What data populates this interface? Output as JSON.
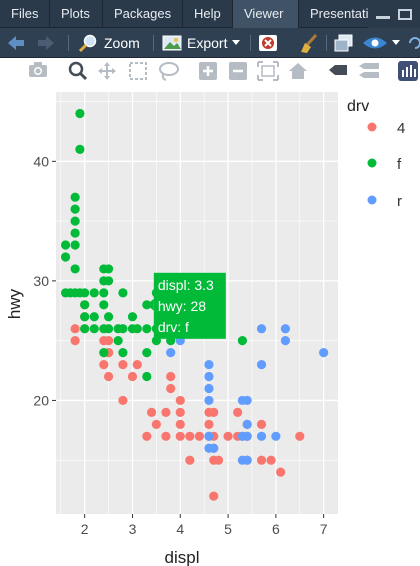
{
  "tabs": [
    {
      "label": "Files",
      "active": false
    },
    {
      "label": "Plots",
      "active": false
    },
    {
      "label": "Packages",
      "active": false
    },
    {
      "label": "Help",
      "active": false
    },
    {
      "label": "Viewer",
      "active": true
    },
    {
      "label": "Presentatio",
      "active": false
    }
  ],
  "toolbar": {
    "zoom_label": "Zoom",
    "export_label": "Export"
  },
  "colors": {
    "drv_4": "#F8766D",
    "drv_f": "#00BA38",
    "drv_r": "#619CFF",
    "panel": "#EBEBEB"
  },
  "chart_data": {
    "type": "scatter",
    "xlabel": "displ",
    "ylabel": "hwy",
    "xlim": [
      1.4,
      7.3
    ],
    "ylim": [
      10.5,
      45.8
    ],
    "xticks": [
      2,
      3,
      4,
      5,
      6,
      7
    ],
    "yticks": [
      20,
      30,
      40
    ],
    "grid": true,
    "legend": {
      "title": "drv",
      "placement": "right",
      "entries": [
        "4",
        "f",
        "r"
      ]
    },
    "tooltip": {
      "line1": "displ: 3.3",
      "line2": "hwy: 28",
      "line3": "drv: f"
    },
    "series": [
      {
        "name": "4",
        "points": [
          [
            1.8,
            26
          ],
          [
            1.8,
            25
          ],
          [
            2.0,
            28
          ],
          [
            2.0,
            27
          ],
          [
            2.4,
            25
          ],
          [
            2.4,
            23
          ],
          [
            2.5,
            22
          ],
          [
            2.5,
            24
          ],
          [
            2.5,
            25
          ],
          [
            2.8,
            20
          ],
          [
            2.8,
            23
          ],
          [
            3.0,
            22
          ],
          [
            3.1,
            23
          ],
          [
            3.3,
            17
          ],
          [
            3.4,
            19
          ],
          [
            3.7,
            19
          ],
          [
            3.7,
            17
          ],
          [
            3.8,
            22
          ],
          [
            3.8,
            21
          ],
          [
            4.0,
            19
          ],
          [
            4.0,
            17
          ],
          [
            4.0,
            20
          ],
          [
            4.0,
            18
          ],
          [
            4.2,
            17
          ],
          [
            4.2,
            15
          ],
          [
            4.6,
            19
          ],
          [
            4.6,
            18
          ],
          [
            4.7,
            17
          ],
          [
            4.7,
            16
          ],
          [
            4.7,
            15
          ],
          [
            4.7,
            12
          ],
          [
            5.2,
            17
          ],
          [
            5.3,
            17
          ],
          [
            5.4,
            17
          ],
          [
            5.4,
            18
          ],
          [
            5.7,
            18
          ],
          [
            5.7,
            15
          ],
          [
            6.1,
            14
          ],
          [
            6.5,
            17
          ],
          [
            4.6,
            17
          ],
          [
            4.7,
            19
          ],
          [
            5.0,
            17
          ],
          [
            5.4,
            15
          ],
          [
            5.9,
            15
          ],
          [
            5.2,
            19
          ],
          [
            4.8,
            15
          ],
          [
            4.4,
            17
          ],
          [
            3.5,
            18
          ],
          [
            2.5,
            24
          ],
          [
            2.0,
            26
          ]
        ]
      },
      {
        "name": "f",
        "points": [
          [
            1.6,
            33
          ],
          [
            1.6,
            32
          ],
          [
            1.6,
            29
          ],
          [
            1.7,
            29
          ],
          [
            1.8,
            29
          ],
          [
            1.8,
            31
          ],
          [
            1.8,
            37
          ],
          [
            1.8,
            36
          ],
          [
            1.8,
            35
          ],
          [
            1.8,
            34
          ],
          [
            1.8,
            33
          ],
          [
            1.9,
            44
          ],
          [
            1.9,
            41
          ],
          [
            1.9,
            29
          ],
          [
            2.0,
            29
          ],
          [
            2.0,
            28
          ],
          [
            2.0,
            27
          ],
          [
            2.0,
            26
          ],
          [
            2.2,
            29
          ],
          [
            2.2,
            27
          ],
          [
            2.2,
            26
          ],
          [
            2.4,
            31
          ],
          [
            2.4,
            30
          ],
          [
            2.4,
            29
          ],
          [
            2.4,
            26
          ],
          [
            2.4,
            24
          ],
          [
            2.5,
            31
          ],
          [
            2.5,
            30
          ],
          [
            2.5,
            27
          ],
          [
            2.5,
            26
          ],
          [
            2.7,
            26
          ],
          [
            2.7,
            25
          ],
          [
            2.8,
            29
          ],
          [
            2.8,
            26
          ],
          [
            3.0,
            26
          ],
          [
            3.0,
            27
          ],
          [
            3.1,
            26
          ],
          [
            3.3,
            28
          ],
          [
            3.3,
            26
          ],
          [
            3.3,
            24
          ],
          [
            3.3,
            22
          ],
          [
            3.5,
            29
          ],
          [
            3.5,
            26
          ],
          [
            3.5,
            25
          ],
          [
            3.6,
            28
          ],
          [
            3.8,
            28
          ],
          [
            3.8,
            26
          ],
          [
            3.8,
            25
          ],
          [
            5.3,
            25
          ],
          [
            2.8,
            24
          ],
          [
            2.4,
            28
          ]
        ]
      },
      {
        "name": "r",
        "points": [
          [
            3.8,
            24
          ],
          [
            4.6,
            23
          ],
          [
            4.6,
            22
          ],
          [
            4.6,
            21
          ],
          [
            4.6,
            20
          ],
          [
            4.6,
            17
          ],
          [
            4.6,
            16
          ],
          [
            4.7,
            16
          ],
          [
            5.4,
            20
          ],
          [
            5.4,
            18
          ],
          [
            5.4,
            17
          ],
          [
            5.4,
            15
          ],
          [
            5.7,
            26
          ],
          [
            5.7,
            23
          ],
          [
            6.2,
            26
          ],
          [
            6.2,
            25
          ],
          [
            7.0,
            24
          ],
          [
            5.3,
            20
          ],
          [
            5.3,
            17
          ],
          [
            5.3,
            15
          ],
          [
            5.7,
            17
          ],
          [
            6.0,
            17
          ],
          [
            4.0,
            25
          ]
        ]
      }
    ]
  }
}
